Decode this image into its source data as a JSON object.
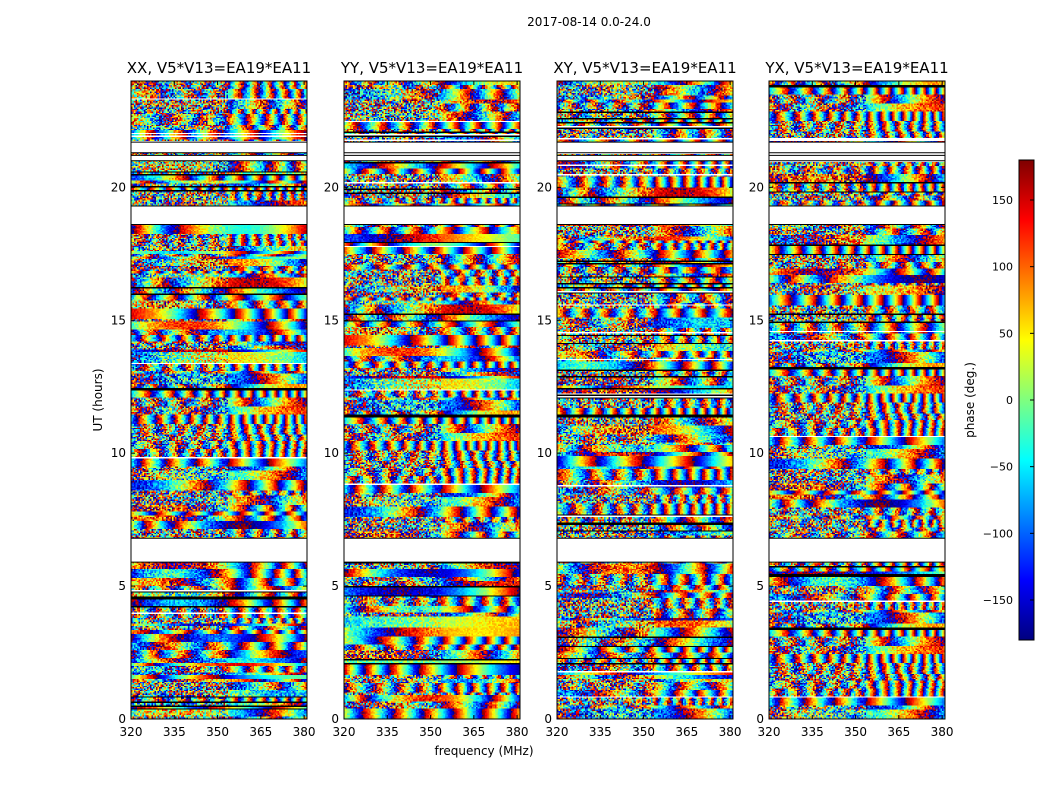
{
  "figure": {
    "suptitle": "2017-08-14 0.0-24.0",
    "xlabel": "frequency (MHz)",
    "ylabel": "UT (hours)"
  },
  "colormap": {
    "name": "jet",
    "stops": [
      "#00007f",
      "#0000ff",
      "#007fff",
      "#00ffff",
      "#7fff7f",
      "#ffff00",
      "#ff7f00",
      "#ff0000",
      "#7f0000"
    ]
  },
  "colorbar": {
    "label": "phase (deg.)",
    "range": [
      -180,
      180
    ],
    "ticks": [
      150,
      100,
      50,
      0,
      -50,
      -100,
      -150
    ],
    "tick_labels": [
      "150",
      "100",
      "50",
      "0",
      "−50",
      "−100",
      "−150"
    ]
  },
  "chart_data": {
    "type": "heatmap",
    "title": "2017-08-14 0.0-24.0",
    "xlabel": "frequency (MHz)",
    "ylabel": "UT (hours)",
    "xlim": [
      320,
      381
    ],
    "ylim": [
      0,
      24
    ],
    "x_ticks": [
      320,
      335,
      350,
      365,
      380
    ],
    "x_tick_labels": [
      "320",
      "335",
      "350",
      "365",
      "380"
    ],
    "y_ticks": [
      0,
      5,
      10,
      15,
      20
    ],
    "y_tick_labels": [
      "0",
      "5",
      "10",
      "15",
      "20"
    ],
    "value_label": "phase (deg.)",
    "value_range": [
      -180,
      180
    ],
    "panels": [
      {
        "title": "XX, V5*V13=EA19*EA11",
        "polarization": "XX"
      },
      {
        "title": "YY, V5*V13=EA19*EA11",
        "polarization": "YY"
      },
      {
        "title": "XY, V5*V13=EA19*EA11",
        "polarization": "XY"
      },
      {
        "title": "YX, V5*V13=EA19*EA11",
        "polarization": "YX"
      }
    ],
    "flagged_gaps_hours": [
      [
        6.8,
        5.9
      ],
      [
        19.3,
        18.6
      ],
      [
        21.0,
        21.2
      ],
      [
        21.3,
        21.7
      ]
    ]
  }
}
